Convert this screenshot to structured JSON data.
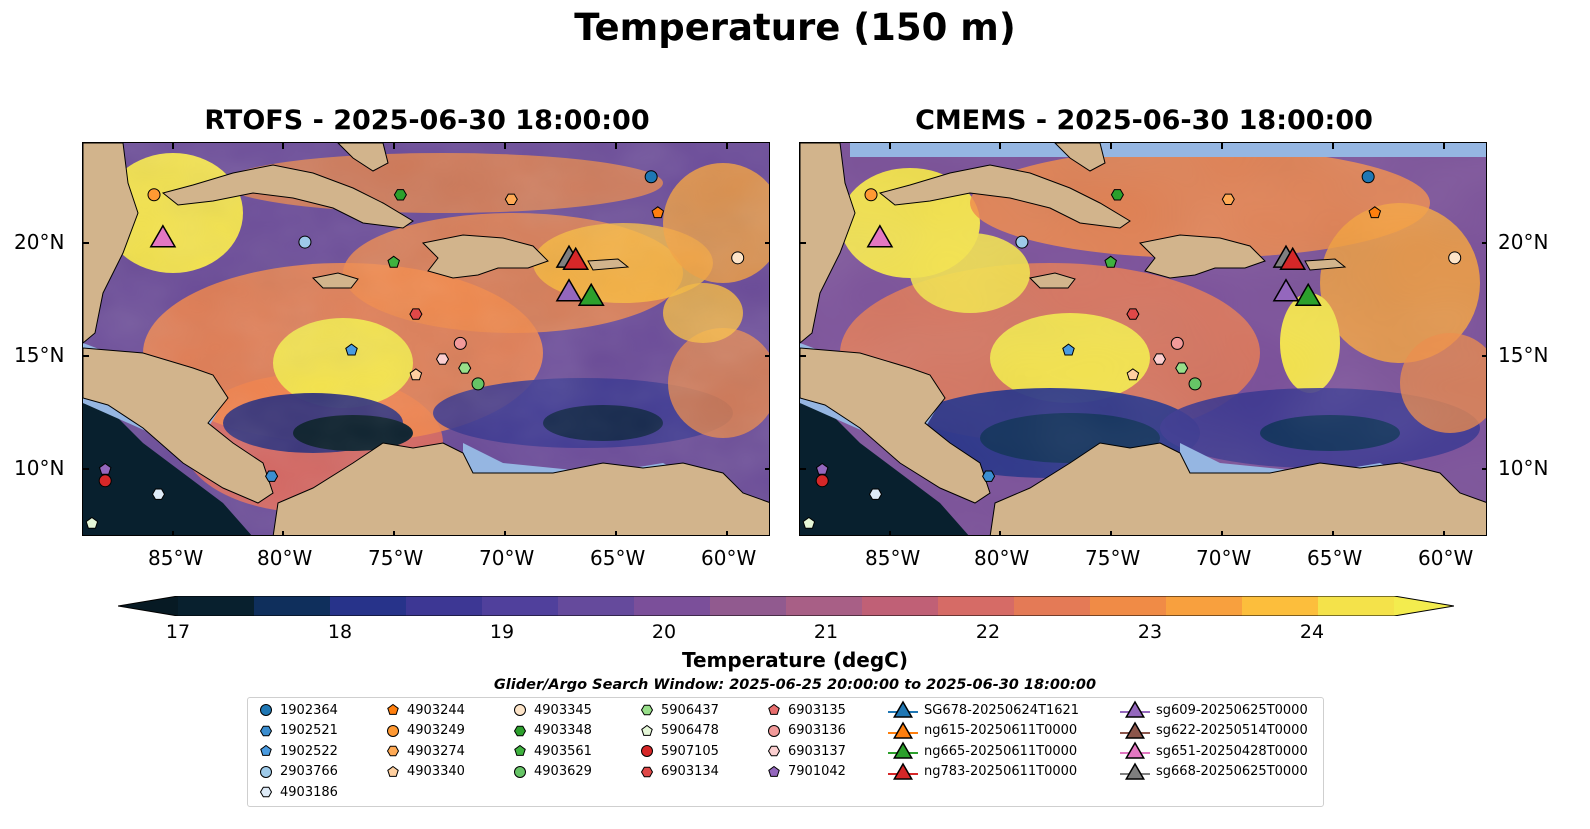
{
  "title": "Temperature (150 m)",
  "panels": [
    {
      "title": "RTOFS - 2025-06-30 18:00:00"
    },
    {
      "title": "CMEMS - 2025-06-30 18:00:00"
    }
  ],
  "lon_ticks": [
    "85°W",
    "80°W",
    "75°W",
    "70°W",
    "65°W",
    "60°W"
  ],
  "lat_ticks": [
    "20°N",
    "15°N",
    "10°N"
  ],
  "map_extent": {
    "lon": [
      -89,
      -58
    ],
    "lat": [
      7,
      24.5
    ]
  },
  "colorbar": {
    "label": "Temperature (degC)",
    "ticks": [
      "17",
      "18",
      "19",
      "20",
      "21",
      "22",
      "23",
      "24"
    ],
    "range": [
      16.5,
      24.5
    ],
    "extend": "both",
    "colors": [
      "#08202e",
      "#0f2f5c",
      "#27338a",
      "#3d3794",
      "#50409c",
      "#654a9c",
      "#7b4f9a",
      "#915a8f",
      "#a85f86",
      "#c06076",
      "#d66b66",
      "#e47a56",
      "#f08b46",
      "#f8a03e",
      "#fcbe3c",
      "#f4e24a"
    ],
    "extend_low_color": "#071a24",
    "extend_high_color": "#f3ec4e"
  },
  "colors": {
    "land": "#d2b48c",
    "shallow_water": "#95b6e2",
    "border": "#000000"
  },
  "legend": {
    "title": "Glider/Argo Search Window: 2025-06-25 20:00:00 to 2025-06-30 18:00:00",
    "columns": [
      [
        {
          "label": "1902364",
          "marker": "circle",
          "color": "#1f77b4"
        },
        {
          "label": "1902521",
          "marker": "hexagon",
          "color": "#3b8ed0"
        },
        {
          "label": "1902522",
          "marker": "pentagon",
          "color": "#4a9be0"
        },
        {
          "label": "2903766",
          "marker": "circle",
          "color": "#9ecae9"
        },
        {
          "label": "4903186",
          "marker": "hexagon",
          "color": "#deebf7"
        }
      ],
      [
        {
          "label": "4903244",
          "marker": "pentagon",
          "color": "#ff7f0e"
        },
        {
          "label": "4903249",
          "marker": "circle",
          "color": "#ff9933"
        },
        {
          "label": "4903274",
          "marker": "hexagon",
          "color": "#ffaa55"
        },
        {
          "label": "4903340",
          "marker": "pentagon",
          "color": "#ffd0a0"
        }
      ],
      [
        {
          "label": "4903345",
          "marker": "circle",
          "color": "#fde4c8"
        },
        {
          "label": "4903348",
          "marker": "hexagon",
          "color": "#2ca02c"
        },
        {
          "label": "4903561",
          "marker": "pentagon",
          "color": "#3fb23f"
        },
        {
          "label": "4903629",
          "marker": "circle",
          "color": "#66c466"
        }
      ],
      [
        {
          "label": "5906437",
          "marker": "hexagon",
          "color": "#98df8a"
        },
        {
          "label": "5906478",
          "marker": "pentagon",
          "color": "#e5f7d8"
        },
        {
          "label": "5907105",
          "marker": "circle",
          "color": "#d62728"
        },
        {
          "label": "6903134",
          "marker": "hexagon",
          "color": "#e04848"
        }
      ],
      [
        {
          "label": "6903135",
          "marker": "pentagon",
          "color": "#e86d6d"
        },
        {
          "label": "6903136",
          "marker": "circle",
          "color": "#f29a9a"
        },
        {
          "label": "6903137",
          "marker": "hexagon",
          "color": "#fbcfd0"
        },
        {
          "label": "7901042",
          "marker": "pentagon",
          "color": "#9467bd"
        }
      ],
      [
        {
          "label": "SG678-20250624T1621",
          "marker": "triangle",
          "color": "#1f77b4"
        },
        {
          "label": "ng615-20250611T0000",
          "marker": "triangle",
          "color": "#ff7f0e"
        },
        {
          "label": "ng665-20250611T0000",
          "marker": "triangle",
          "color": "#2ca02c"
        },
        {
          "label": "ng783-20250611T0000",
          "marker": "triangle",
          "color": "#d62728"
        }
      ],
      [
        {
          "label": "sg609-20250625T0000",
          "marker": "triangle",
          "color": "#9467bd"
        },
        {
          "label": "sg622-20250514T0000",
          "marker": "triangle",
          "color": "#8c564b"
        },
        {
          "label": "sg651-20250428T0000",
          "marker": "triangle",
          "color": "#e377c2"
        },
        {
          "label": "sg668-20250625T0000",
          "marker": "triangle",
          "color": "#7f7f7f"
        }
      ]
    ]
  },
  "floats": [
    {
      "label": "1902364",
      "lon": -63.4,
      "lat": 23.0
    },
    {
      "label": "4903244",
      "lon": -63.1,
      "lat": 21.4
    },
    {
      "label": "4903249",
      "lon": -85.8,
      "lat": 22.2
    },
    {
      "label": "4903274",
      "lon": -69.7,
      "lat": 22.0
    },
    {
      "label": "4903348",
      "lon": -74.7,
      "lat": 22.2
    },
    {
      "label": "2903766",
      "lon": -79.0,
      "lat": 20.1
    },
    {
      "label": "4903345",
      "lon": -59.5,
      "lat": 19.4
    },
    {
      "label": "4903561",
      "lon": -75.0,
      "lat": 19.2
    },
    {
      "label": "6903134",
      "lon": -74.0,
      "lat": 16.9
    },
    {
      "label": "1902522",
      "lon": -76.9,
      "lat": 15.3
    },
    {
      "label": "6903136",
      "lon": -72.0,
      "lat": 15.6
    },
    {
      "label": "6903137",
      "lon": -72.8,
      "lat": 14.9
    },
    {
      "label": "5906437",
      "lon": -71.8,
      "lat": 14.5
    },
    {
      "label": "4903629",
      "lon": -71.2,
      "lat": 13.8
    },
    {
      "label": "4903340",
      "lon": -74.0,
      "lat": 14.2
    },
    {
      "label": "1902521",
      "lon": -80.5,
      "lat": 9.7
    },
    {
      "label": "7901042",
      "lon": -88.0,
      "lat": 10.0
    },
    {
      "label": "5907105",
      "lon": -88.0,
      "lat": 9.5
    },
    {
      "label": "4903186",
      "lon": -85.6,
      "lat": 8.9
    },
    {
      "label": "5906478",
      "lon": -88.6,
      "lat": 7.6
    }
  ],
  "gliders": [
    {
      "label": "sg668-20250625T0000",
      "lon": -67.1,
      "lat": 19.3
    },
    {
      "label": "ng783-20250611T0000",
      "lon": -66.8,
      "lat": 19.2
    },
    {
      "label": "sg609-20250625T0000",
      "lon": -67.1,
      "lat": 17.8
    },
    {
      "label": "ng665-20250611T0000",
      "lon": -66.1,
      "lat": 17.6
    },
    {
      "label": "sg651-20250428T0000",
      "lon": -85.4,
      "lat": 20.2
    }
  ]
}
